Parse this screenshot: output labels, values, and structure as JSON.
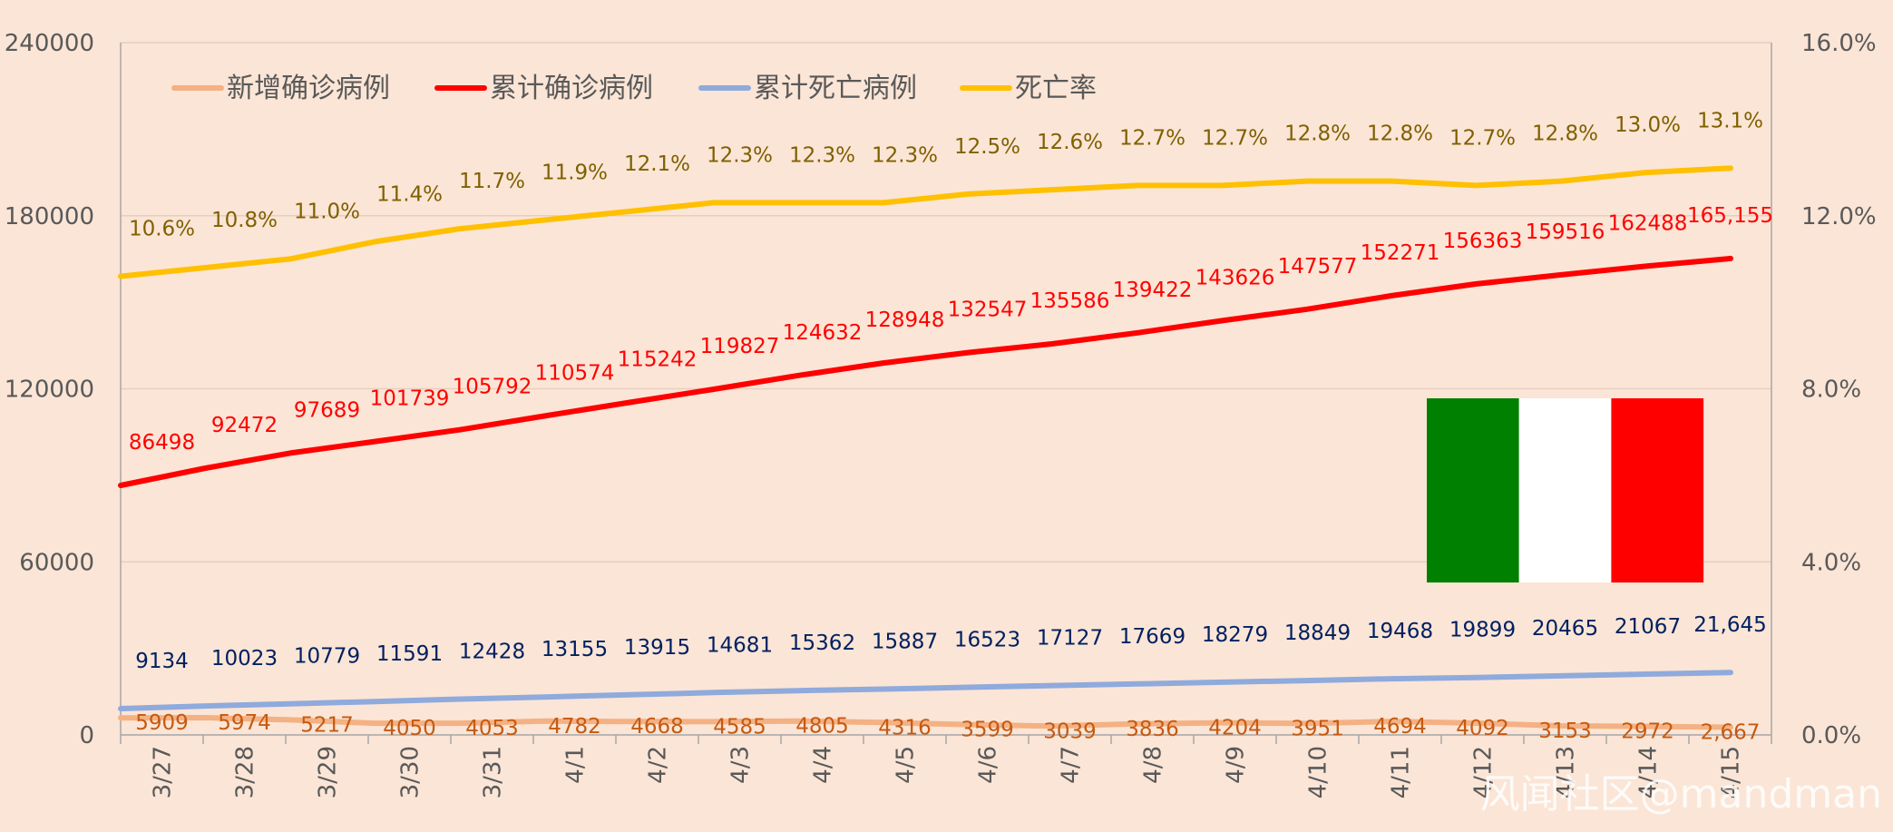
{
  "chart_data": {
    "type": "line",
    "categories": [
      "3/27",
      "3/28",
      "3/29",
      "3/30",
      "3/31",
      "4/1",
      "4/2",
      "4/3",
      "4/4",
      "4/5",
      "4/6",
      "4/7",
      "4/8",
      "4/9",
      "4/10",
      "4/11",
      "4/12",
      "4/13",
      "4/14",
      "4/15"
    ],
    "y_left": {
      "min": 0,
      "max": 240000,
      "ticks": [
        "0",
        "60000",
        "120000",
        "180000",
        "240000"
      ]
    },
    "y_right": {
      "min": 0,
      "max": 16,
      "ticks": [
        "0.0%",
        "4.0%",
        "8.0%",
        "12.0%",
        "16.0%"
      ]
    },
    "grid": true,
    "legend_position": "top-left",
    "series": [
      {
        "name": "新增确诊病例",
        "axis": "left",
        "color": "#f4b183",
        "label_color": "#c55a11",
        "values": [
          5909,
          5974,
          5217,
          4050,
          4053,
          4782,
          4668,
          4585,
          4805,
          4316,
          3599,
          3039,
          3836,
          4204,
          3951,
          4694,
          4092,
          3153,
          2972,
          2667
        ],
        "labels": [
          "5909",
          "5974",
          "5217",
          "4050",
          "4053",
          "4782",
          "4668",
          "4585",
          "4805",
          "4316",
          "3599",
          "3039",
          "3836",
          "4204",
          "3951",
          "4694",
          "4092",
          "3153",
          "2972",
          "2,667"
        ]
      },
      {
        "name": "累计确诊病例",
        "axis": "left",
        "color": "#ff0000",
        "label_color": "#ff0000",
        "values": [
          86498,
          92472,
          97689,
          101739,
          105792,
          110574,
          115242,
          119827,
          124632,
          128948,
          132547,
          135586,
          139422,
          143626,
          147577,
          152271,
          156363,
          159516,
          162488,
          165155
        ],
        "labels": [
          "86498",
          "92472",
          "97689",
          "101739",
          "105792",
          "110574",
          "115242",
          "119827",
          "124632",
          "128948",
          "132547",
          "135586",
          "139422",
          "143626",
          "147577",
          "152271",
          "156363",
          "159516",
          "162488",
          "165,155"
        ]
      },
      {
        "name": "累计死亡病例",
        "axis": "left",
        "color": "#8faadc",
        "label_color": "#002060",
        "values": [
          9134,
          10023,
          10779,
          11591,
          12428,
          13155,
          13915,
          14681,
          15362,
          15887,
          16523,
          17127,
          17669,
          18279,
          18849,
          19468,
          19899,
          20465,
          21067,
          21645
        ],
        "labels": [
          "9134",
          "10023",
          "10779",
          "11591",
          "12428",
          "13155",
          "13915",
          "14681",
          "15362",
          "15887",
          "16523",
          "17127",
          "17669",
          "18279",
          "18849",
          "19468",
          "19899",
          "20465",
          "21067",
          "21,645"
        ]
      },
      {
        "name": "死亡率",
        "axis": "right",
        "color": "#ffc000",
        "label_color": "#7f6000",
        "values": [
          10.6,
          10.8,
          11.0,
          11.4,
          11.7,
          11.9,
          12.1,
          12.3,
          12.3,
          12.3,
          12.5,
          12.6,
          12.7,
          12.7,
          12.8,
          12.8,
          12.7,
          12.8,
          13.0,
          13.1
        ],
        "labels": [
          "10.6%",
          "10.8%",
          "11.0%",
          "11.4%",
          "11.7%",
          "11.9%",
          "12.1%",
          "12.3%",
          "12.3%",
          "12.3%",
          "12.5%",
          "12.6%",
          "12.7%",
          "12.7%",
          "12.8%",
          "12.8%",
          "12.7%",
          "12.8%",
          "13.0%",
          "13.1%"
        ]
      }
    ]
  },
  "flag": {
    "colors": [
      "#008000",
      "#ffffff",
      "#ff0000"
    ]
  },
  "watermark": "风闻社区@mandman"
}
